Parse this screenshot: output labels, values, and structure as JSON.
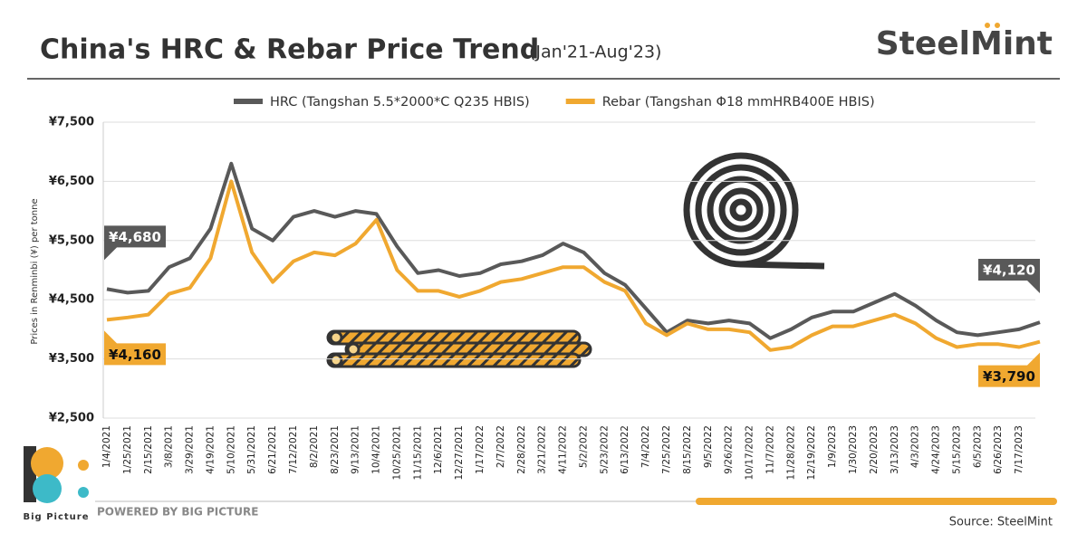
{
  "chart_data": {
    "type": "line",
    "title": "China's HRC & Rebar Price Trend",
    "subtitle": "(Jan'21-Aug'23)",
    "y_label": "Prices in Renminbi (¥) per tonne",
    "categories": [
      "1/4/2021",
      "1/25/2021",
      "2/15/2021",
      "3/8/2021",
      "3/29/2021",
      "4/19/2021",
      "5/10/2021",
      "5/31/2021",
      "6/21/2021",
      "7/12/2021",
      "8/2/2021",
      "8/23/2021",
      "9/13/2021",
      "10/4/2021",
      "10/25/2021",
      "11/15/2021",
      "12/6/2021",
      "12/27/2021",
      "1/17/2022",
      "2/7/2022",
      "2/28/2022",
      "3/21/2022",
      "4/11/2022",
      "5/2/2022",
      "5/23/2022",
      "6/13/2022",
      "7/4/2022",
      "7/25/2022",
      "8/15/2022",
      "9/5/2022",
      "9/26/2022",
      "10/17/2022",
      "11/7/2022",
      "11/28/2022",
      "12/19/2022",
      "1/9/2023",
      "1/30/2023",
      "2/20/2023",
      "3/13/2023",
      "4/3/2023",
      "4/24/2023",
      "5/15/2023",
      "6/5/2023",
      "6/26/2023",
      "7/17/2023",
      null
    ],
    "series": [
      {
        "name": "HRC (Tangshan 5.5*2000*C Q235 HBIS)",
        "color": "#595959",
        "values": [
          4680,
          4620,
          4650,
          5050,
          5200,
          5700,
          6800,
          5700,
          5500,
          5900,
          6000,
          5900,
          6000,
          5950,
          5400,
          4950,
          5000,
          4900,
          4950,
          5100,
          5150,
          5250,
          5450,
          5300,
          4950,
          4750,
          4350,
          3950,
          4150,
          4100,
          4150,
          4100,
          3850,
          4000,
          4200,
          4300,
          4300,
          4450,
          4600,
          4400,
          4150,
          3950,
          3900,
          3950,
          4000,
          4120
        ],
        "value_labels": [
          "¥4,680",
          null,
          null,
          null,
          null,
          null,
          null,
          null,
          null,
          null,
          null,
          null,
          null,
          null,
          null,
          null,
          null,
          null,
          null,
          null,
          null,
          null,
          null,
          null,
          null,
          null,
          null,
          null,
          null,
          null,
          null,
          null,
          null,
          null,
          null,
          null,
          null,
          null,
          null,
          null,
          null,
          null,
          null,
          null,
          null,
          "¥4,120"
        ]
      },
      {
        "name": "Rebar (Tangshan Φ18 mmHRB400E HBIS)",
        "color": "#f0a830",
        "values": [
          4160,
          4200,
          4250,
          4600,
          4700,
          5200,
          6500,
          5300,
          4800,
          5150,
          5300,
          5250,
          5450,
          5850,
          5000,
          4650,
          4650,
          4550,
          4650,
          4800,
          4850,
          4950,
          5050,
          5050,
          4800,
          4650,
          4100,
          3900,
          4100,
          4000,
          4000,
          3950,
          3650,
          3700,
          3900,
          4050,
          4050,
          4150,
          4250,
          4100,
          3850,
          3700,
          3750,
          3750,
          3700,
          3790
        ],
        "value_labels": [
          "¥4,160",
          null,
          null,
          null,
          null,
          null,
          null,
          null,
          null,
          null,
          null,
          null,
          null,
          null,
          null,
          null,
          null,
          null,
          null,
          null,
          null,
          null,
          null,
          null,
          null,
          null,
          null,
          null,
          null,
          null,
          null,
          null,
          null,
          null,
          null,
          null,
          null,
          null,
          null,
          null,
          null,
          null,
          null,
          null,
          null,
          "¥3,790"
        ]
      }
    ],
    "ylim": [
      2500,
      7500
    ],
    "yticks": [
      {
        "value": 2500,
        "label": "¥2,500"
      },
      {
        "value": 3500,
        "label": "¥3,500"
      },
      {
        "value": 4500,
        "label": "¥4,500"
      },
      {
        "value": 5500,
        "label": "¥5,500"
      },
      {
        "value": 6500,
        "label": "¥6,500"
      },
      {
        "value": 7500,
        "label": "¥7,500"
      }
    ],
    "grid": true
  },
  "brand": "SteelMint",
  "footer": {
    "logo_text": "Big Picture",
    "powered_by": "POWERED BY BIG PICTURE",
    "source": "Source: SteelMint"
  }
}
